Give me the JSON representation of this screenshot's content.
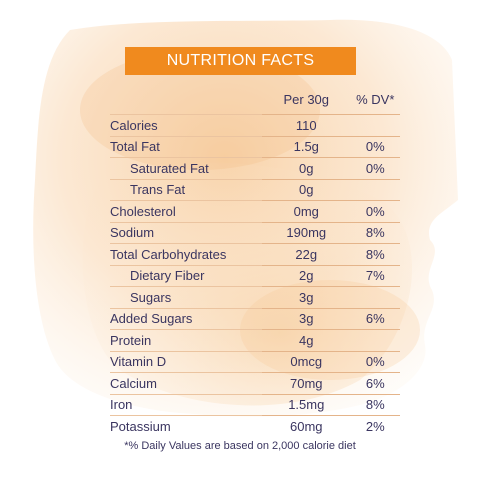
{
  "title": "NUTRITION FACTS",
  "columns": {
    "per": "Per 30g",
    "dv": "% DV*"
  },
  "rows": [
    {
      "name": "Calories",
      "per": "110",
      "dv": "",
      "indent": false
    },
    {
      "name": "Total Fat",
      "per": "1.5g",
      "dv": "0%",
      "indent": false
    },
    {
      "name": "Saturated Fat",
      "per": "0g",
      "dv": "0%",
      "indent": true
    },
    {
      "name": "Trans Fat",
      "per": "0g",
      "dv": "",
      "indent": true
    },
    {
      "name": "Cholesterol",
      "per": "0mg",
      "dv": "0%",
      "indent": false
    },
    {
      "name": "Sodium",
      "per": "190mg",
      "dv": "8%",
      "indent": false
    },
    {
      "name": "Total Carbohydrates",
      "per": "22g",
      "dv": "8%",
      "indent": false
    },
    {
      "name": "Dietary Fiber",
      "per": "2g",
      "dv": "7%",
      "indent": true
    },
    {
      "name": "Sugars",
      "per": "3g",
      "dv": "",
      "indent": true
    },
    {
      "name": "Added Sugars",
      "per": "3g",
      "dv": "6%",
      "indent": false
    },
    {
      "name": "Protein",
      "per": "4g",
      "dv": "",
      "indent": false
    },
    {
      "name": "Vitamin D",
      "per": "0mcg",
      "dv": "0%",
      "indent": false
    },
    {
      "name": "Calcium",
      "per": "70mg",
      "dv": "6%",
      "indent": false
    },
    {
      "name": "Iron",
      "per": "1.5mg",
      "dv": "8%",
      "indent": false
    },
    {
      "name": "Potassium",
      "per": "60mg",
      "dv": "2%",
      "indent": false
    }
  ],
  "footnote": "*% Daily Values are based on 2,000 calorie diet",
  "colors": {
    "accent": "#f08a1e",
    "text": "#3a3560",
    "wash": "#f7cfa2"
  }
}
